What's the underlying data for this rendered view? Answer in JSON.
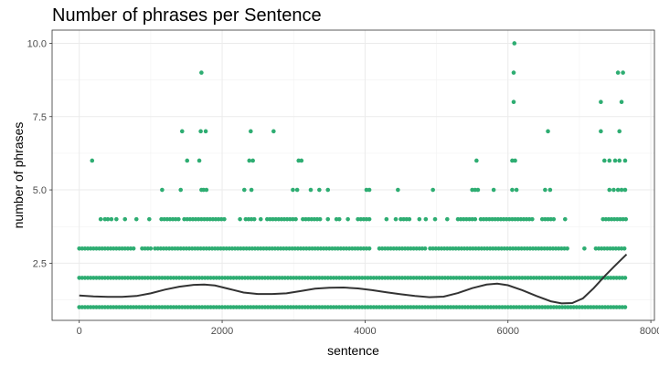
{
  "chart_data": {
    "type": "scatter",
    "title": "Number of phrases per Sentence",
    "xlabel": "sentence",
    "ylabel": "number of phrases",
    "xlim": [
      -380,
      8050
    ],
    "ylim": [
      0.55,
      10.45
    ],
    "x_ticks": [
      0,
      2000,
      4000,
      6000,
      8000
    ],
    "x_tick_labels": [
      "0",
      "2000",
      "4000",
      "6000",
      "8000"
    ],
    "y_ticks": [
      2.5,
      5.0,
      7.5,
      10.0
    ],
    "y_tick_labels": [
      "2.5",
      "5.0",
      "7.5",
      "10.0"
    ],
    "grid": true,
    "point_color": "#2EAD72",
    "smooth_color": "#333333",
    "x_max": 7660,
    "dense_series": [
      {
        "y": 1,
        "ranges": [
          [
            0,
            7660
          ]
        ]
      },
      {
        "y": 2,
        "ranges": [
          [
            0,
            7660
          ]
        ]
      },
      {
        "y": 3,
        "ranges": [
          [
            0,
            520
          ],
          [
            560,
            760
          ],
          [
            880,
            1020
          ],
          [
            1060,
            2180
          ],
          [
            2220,
            4060
          ],
          [
            4200,
            4870
          ],
          [
            4910,
            6830
          ],
          [
            7070,
            7100
          ],
          [
            7230,
            7660
          ]
        ]
      },
      {
        "y": 4,
        "ranges": [
          [
            1150,
            1420
          ],
          [
            1470,
            2050
          ],
          [
            2330,
            2480
          ],
          [
            2630,
            3050
          ],
          [
            3130,
            3400
          ],
          [
            3600,
            3650
          ],
          [
            3900,
            4080
          ],
          [
            4500,
            4650
          ],
          [
            5300,
            5560
          ],
          [
            5620,
            6350
          ],
          [
            6480,
            6660
          ],
          [
            7330,
            7660
          ]
        ]
      }
    ],
    "points": [
      {
        "x": 300,
        "y": 4
      },
      {
        "x": 360,
        "y": 4
      },
      {
        "x": 400,
        "y": 4
      },
      {
        "x": 450,
        "y": 4
      },
      {
        "x": 520,
        "y": 4
      },
      {
        "x": 640,
        "y": 4
      },
      {
        "x": 800,
        "y": 4
      },
      {
        "x": 980,
        "y": 4
      },
      {
        "x": 2250,
        "y": 4
      },
      {
        "x": 2540,
        "y": 4
      },
      {
        "x": 3480,
        "y": 4
      },
      {
        "x": 3760,
        "y": 4
      },
      {
        "x": 4300,
        "y": 4
      },
      {
        "x": 4430,
        "y": 4
      },
      {
        "x": 4760,
        "y": 4
      },
      {
        "x": 4850,
        "y": 4
      },
      {
        "x": 4980,
        "y": 4
      },
      {
        "x": 5150,
        "y": 4
      },
      {
        "x": 6800,
        "y": 4
      },
      {
        "x": 1160,
        "y": 5
      },
      {
        "x": 1420,
        "y": 5
      },
      {
        "x": 1710,
        "y": 5
      },
      {
        "x": 1740,
        "y": 5
      },
      {
        "x": 1780,
        "y": 5
      },
      {
        "x": 2310,
        "y": 5
      },
      {
        "x": 2410,
        "y": 5
      },
      {
        "x": 2990,
        "y": 5
      },
      {
        "x": 3050,
        "y": 5
      },
      {
        "x": 3240,
        "y": 5
      },
      {
        "x": 3360,
        "y": 5
      },
      {
        "x": 3480,
        "y": 5
      },
      {
        "x": 4020,
        "y": 5
      },
      {
        "x": 4060,
        "y": 5
      },
      {
        "x": 4460,
        "y": 5
      },
      {
        "x": 4950,
        "y": 5
      },
      {
        "x": 5500,
        "y": 5
      },
      {
        "x": 5540,
        "y": 5
      },
      {
        "x": 5580,
        "y": 5
      },
      {
        "x": 5800,
        "y": 5
      },
      {
        "x": 6060,
        "y": 5
      },
      {
        "x": 6120,
        "y": 5
      },
      {
        "x": 6520,
        "y": 5
      },
      {
        "x": 6590,
        "y": 5
      },
      {
        "x": 7420,
        "y": 5
      },
      {
        "x": 7480,
        "y": 5
      },
      {
        "x": 7540,
        "y": 5
      },
      {
        "x": 7590,
        "y": 5
      },
      {
        "x": 7640,
        "y": 5
      },
      {
        "x": 180,
        "y": 6
      },
      {
        "x": 1510,
        "y": 6
      },
      {
        "x": 1680,
        "y": 6
      },
      {
        "x": 2380,
        "y": 6
      },
      {
        "x": 2430,
        "y": 6
      },
      {
        "x": 3070,
        "y": 6
      },
      {
        "x": 3110,
        "y": 6
      },
      {
        "x": 5560,
        "y": 6
      },
      {
        "x": 6060,
        "y": 6
      },
      {
        "x": 6100,
        "y": 6
      },
      {
        "x": 7350,
        "y": 6
      },
      {
        "x": 7420,
        "y": 6
      },
      {
        "x": 7500,
        "y": 6
      },
      {
        "x": 7560,
        "y": 6
      },
      {
        "x": 7640,
        "y": 6
      },
      {
        "x": 1440,
        "y": 7
      },
      {
        "x": 1700,
        "y": 7
      },
      {
        "x": 1770,
        "y": 7
      },
      {
        "x": 2400,
        "y": 7
      },
      {
        "x": 2720,
        "y": 7
      },
      {
        "x": 6560,
        "y": 7
      },
      {
        "x": 7300,
        "y": 7
      },
      {
        "x": 7560,
        "y": 7
      },
      {
        "x": 6080,
        "y": 8
      },
      {
        "x": 7300,
        "y": 8
      },
      {
        "x": 7590,
        "y": 8
      },
      {
        "x": 1710,
        "y": 9
      },
      {
        "x": 6080,
        "y": 9
      },
      {
        "x": 7540,
        "y": 9
      },
      {
        "x": 7610,
        "y": 9
      },
      {
        "x": 6090,
        "y": 10
      }
    ],
    "smooth": [
      [
        0,
        1.4
      ],
      [
        200,
        1.37
      ],
      [
        400,
        1.35
      ],
      [
        600,
        1.35
      ],
      [
        800,
        1.38
      ],
      [
        1000,
        1.47
      ],
      [
        1200,
        1.6
      ],
      [
        1400,
        1.7
      ],
      [
        1600,
        1.76
      ],
      [
        1750,
        1.77
      ],
      [
        1900,
        1.74
      ],
      [
        2100,
        1.62
      ],
      [
        2300,
        1.5
      ],
      [
        2500,
        1.45
      ],
      [
        2700,
        1.45
      ],
      [
        2900,
        1.47
      ],
      [
        3100,
        1.55
      ],
      [
        3300,
        1.63
      ],
      [
        3500,
        1.66
      ],
      [
        3700,
        1.67
      ],
      [
        3900,
        1.64
      ],
      [
        4100,
        1.58
      ],
      [
        4300,
        1.51
      ],
      [
        4500,
        1.44
      ],
      [
        4700,
        1.38
      ],
      [
        4900,
        1.34
      ],
      [
        5100,
        1.36
      ],
      [
        5300,
        1.48
      ],
      [
        5500,
        1.65
      ],
      [
        5700,
        1.77
      ],
      [
        5850,
        1.8
      ],
      [
        6000,
        1.75
      ],
      [
        6200,
        1.58
      ],
      [
        6400,
        1.38
      ],
      [
        6600,
        1.2
      ],
      [
        6750,
        1.13
      ],
      [
        6900,
        1.14
      ],
      [
        7050,
        1.3
      ],
      [
        7200,
        1.65
      ],
      [
        7350,
        2.05
      ],
      [
        7500,
        2.42
      ],
      [
        7660,
        2.8
      ]
    ]
  }
}
